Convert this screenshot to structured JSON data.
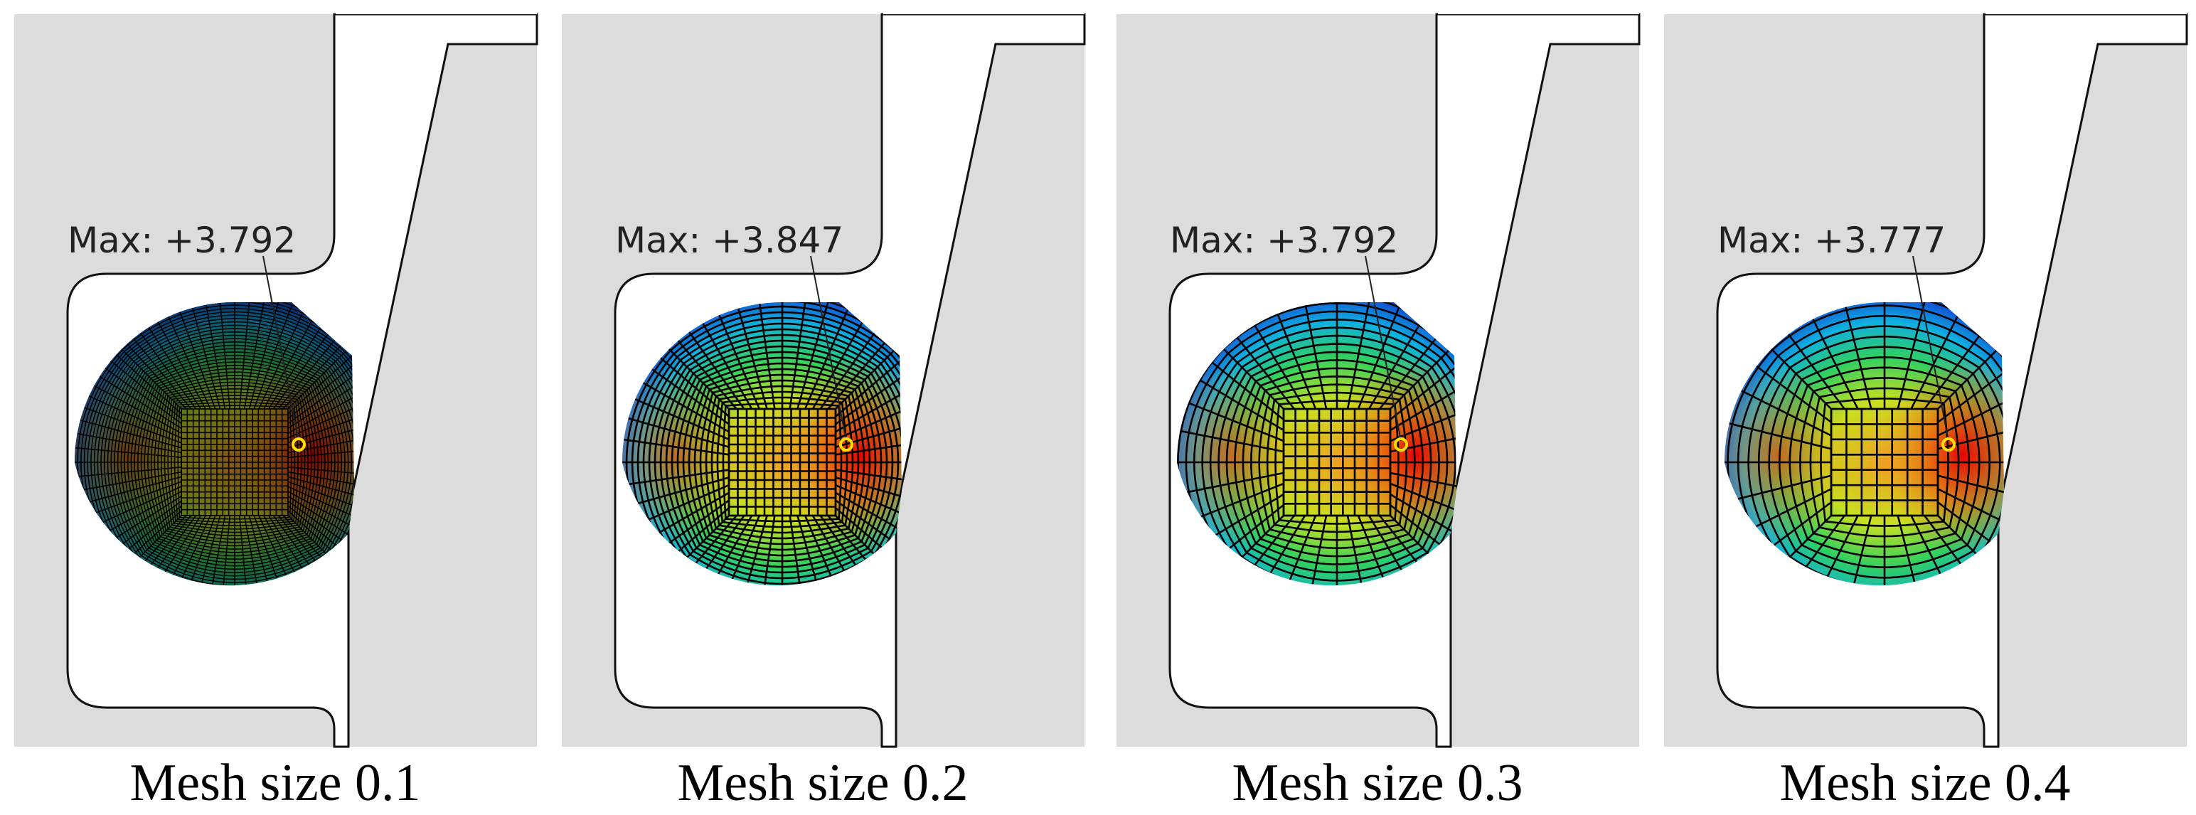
{
  "panels": [
    {
      "max_label": "Max: +3.792",
      "caption": "Mesh size 0.1"
    },
    {
      "max_label": "Max: +3.847",
      "caption": "Mesh size 0.2"
    },
    {
      "max_label": "Max: +3.792",
      "caption": "Mesh size 0.3"
    },
    {
      "max_label": "Max: +3.777",
      "caption": "Mesh size 0.4"
    }
  ]
}
